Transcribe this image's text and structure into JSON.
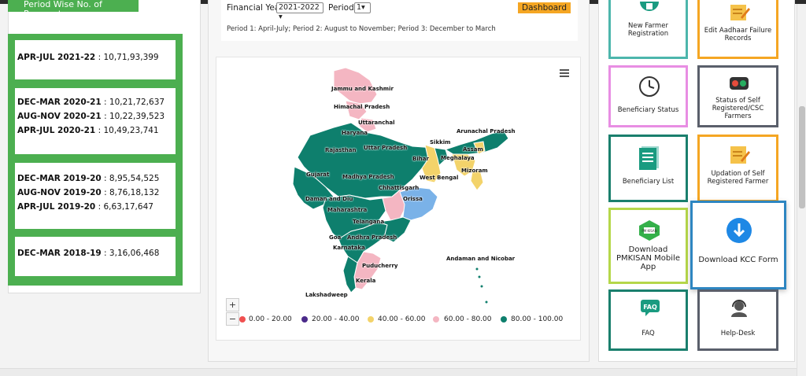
{
  "left": {
    "head_button": "Period Wise No. of Payments",
    "cards": [
      {
        "rows": [
          {
            "period": "APR-JUL 2021-22",
            "value": ": 10,71,93,399"
          }
        ]
      },
      {
        "rows": [
          {
            "period": "DEC-MAR 2020-21",
            "value": ": 10,21,72,637"
          },
          {
            "period": "AUG-NOV 2020-21",
            "value": ": 10,22,39,523"
          },
          {
            "period": "APR-JUL 2020-21",
            "value": ": 10,49,23,741"
          }
        ]
      },
      {
        "rows": [
          {
            "period": "DEC-MAR 2019-20",
            "value": ": 8,95,54,525"
          },
          {
            "period": "AUG-NOV 2019-20",
            "value": ": 8,76,18,132"
          },
          {
            "period": "APR-JUL 2019-20",
            "value": ": 6,63,17,647"
          }
        ]
      },
      {
        "rows": [
          {
            "period": "DEC-MAR 2018-19",
            "value": ": 3,16,06,468"
          }
        ]
      }
    ],
    "accent": "#4caf50"
  },
  "filters": {
    "fy_label": "Financial Year",
    "fy_value": "2021-2022",
    "period_label": "Period",
    "period_value": "1",
    "dashboard_button": "Dashboard",
    "note": "Period 1: April-July; Period 2: August to November; Period 3: December to March"
  },
  "map": {
    "labels": {
      "jk": "Jammu and Kashmir",
      "hp": "Himachal Pradesh",
      "uk": "Uttaranchal",
      "hr": "Haryana",
      "rj": "Rajasthan",
      "up": "Uttar Pradesh",
      "sk": "Sikkim",
      "ar": "Arunachal Pradesh",
      "as": "Assam",
      "ml": "Meghalaya",
      "bh": "Bihar",
      "gj": "Gujarat",
      "mp": "Madhya Pradesh",
      "wb": "West Bengal",
      "mz": "Mizoram",
      "cg": "Chhattisgarh",
      "dd": "Daman and Diu",
      "or": "Orissa",
      "mh": "Maharashtra",
      "tg": "Telangana",
      "ga": "Goa",
      "ap": "Andhra Pradesh",
      "ka": "Karnataka",
      "an": "Andaman and Nicobar",
      "pd": "Puducherry",
      "kl": "Kerala",
      "ld": "Lakshadweep"
    },
    "zoom_in": "+",
    "zoom_out": "−",
    "legend": [
      {
        "label": "0.00 - 20.00",
        "color": "#f05050"
      },
      {
        "label": "20.00 - 40.00",
        "color": "#4b2a8a"
      },
      {
        "label": "40.00 - 60.00",
        "color": "#f3d36a"
      },
      {
        "label": "60.00 - 80.00",
        "color": "#f4b6c2"
      },
      {
        "label": "80.00 - 100.00",
        "color": "#0e7f6d"
      }
    ],
    "menu_icon": "hamburger-icon"
  },
  "tiles": {
    "new_farmer": "New Farmer Registration",
    "edit_aadhaar": "Edit Aadhaar Failure Records",
    "beneficiary_status": "Beneficiary Status",
    "self_status": "Status of Self Registered/CSC Farmers",
    "beneficiary_list": "Beneficiary List",
    "update_self": "Updation of Self Registered Farmer",
    "download_app": "Download PMKISAN Mobile App",
    "download_kcc": "Download KCC Form",
    "faq": "FAQ",
    "helpdesk": "Help-Desk",
    "faq_icon_text": "FAQ",
    "app_icon_text": "PM KISAN"
  }
}
